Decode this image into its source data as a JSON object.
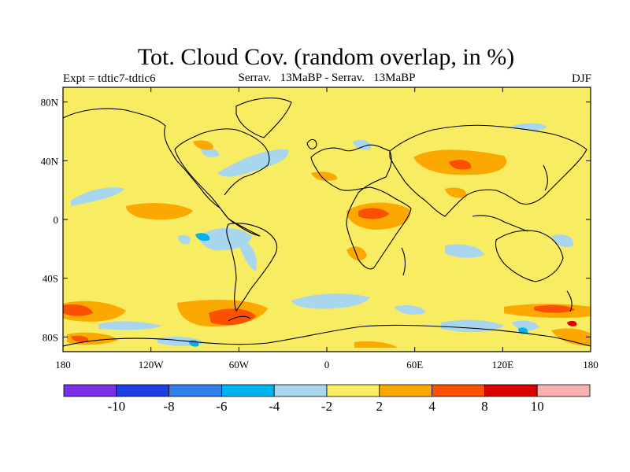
{
  "title": "Tot. Cloud Cov. (random overlap, in %)",
  "subtitle_left": "Expt = tdtic7-tdtic6",
  "subtitle_center": "Serrav.   13MaBP - Serrav.   13MaBP",
  "subtitle_right": "DJF",
  "x_ticks": [
    "180",
    "120W",
    "60W",
    "0",
    "60E",
    "120E",
    "180"
  ],
  "y_ticks": [
    "80N",
    "40N",
    "0",
    "40S",
    "80S"
  ],
  "colorbar": {
    "colors": [
      "#7a2ee6",
      "#1f3fe6",
      "#2f80ec",
      "#00b2f0",
      "#a8d6ee",
      "#f8ec62",
      "#fba800",
      "#fb5000",
      "#d80000",
      "#f8b0b0"
    ],
    "labels": [
      "-10",
      "-8",
      "-6",
      "-4",
      "-2",
      "2",
      "4",
      "8",
      "10"
    ]
  },
  "chart_data": {
    "type": "heatmap",
    "title": "Tot. Cloud Cov. (random overlap, in %)",
    "xlabel": "",
    "ylabel": "",
    "xlim": [
      -180,
      180
    ],
    "ylim": [
      -90,
      90
    ],
    "levels": [
      -10,
      -8,
      -6,
      -4,
      -2,
      2,
      4,
      8,
      10
    ],
    "background_bin": "-2 to 2",
    "regions_approx": [
      {
        "label": "central Africa",
        "lon": 25,
        "lat": 5,
        "value_range": "4 to 8"
      },
      {
        "label": "Southern Ocean Pacific",
        "lon": -60,
        "lat": -62,
        "value_range": "4 to 8"
      },
      {
        "label": "eastern Asia",
        "lon": 110,
        "lat": 35,
        "value_range": "4 to 8"
      },
      {
        "label": "North Atlantic",
        "lon": -30,
        "lat": 45,
        "value_range": "-4 to -2"
      },
      {
        "label": "southern Indian Ocean",
        "lon": 40,
        "lat": -55,
        "value_range": "-4 to -2"
      },
      {
        "label": "tropical Atlantic",
        "lon": -65,
        "lat": -10,
        "value_range": "-6 to -4"
      }
    ]
  }
}
